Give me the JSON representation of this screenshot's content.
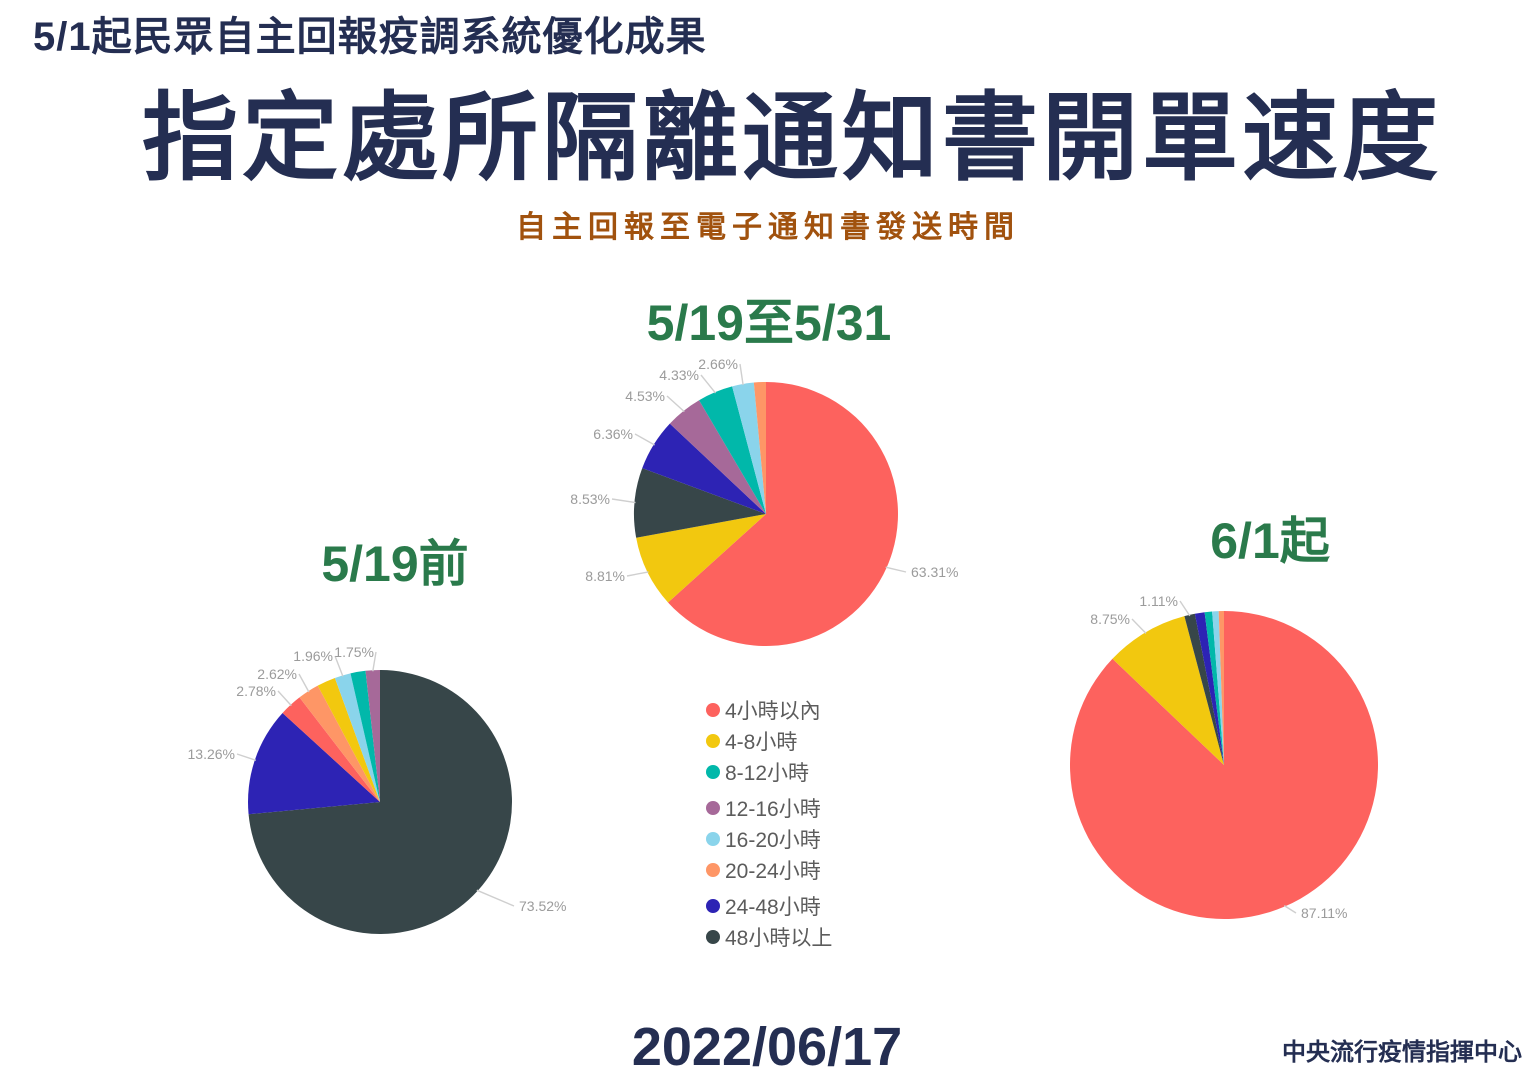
{
  "header": {
    "kicker": "5/1起民眾自主回報疫調系統優化成果",
    "title": "指定處所隔離通知書開單速度",
    "subtitle": "自主回報至電子通知書發送時間"
  },
  "footer": {
    "date": "2022/06/17",
    "source": "中央流行疫情指揮中心"
  },
  "palette": {
    "4小時以內": "#FD625E",
    "4-8小時": "#F2C80F",
    "8-12小時": "#01B8AA",
    "12-16小時": "#A66999",
    "16-20小時": "#8AD4EB",
    "20-24小時": "#FE9666",
    "24-48小時": "#2D23B4",
    "48小時以上": "#374649"
  },
  "legend": [
    "4小時以內",
    "4-8小時",
    "8-12小時",
    "12-16小時",
    "16-20小時",
    "20-24小時",
    "24-48小時",
    "48小時以上"
  ],
  "chart_data": {
    "type": "pie",
    "unit": "percent",
    "legend_position": "center-bottom",
    "note": "slices listed clockwise from 12 o'clock; values without visible labels are estimated from slice angles",
    "pies": [
      {
        "title": "5/19前",
        "slices": [
          {
            "category": "48小時以上",
            "value": 73.52,
            "label": "73.52%"
          },
          {
            "category": "24-48小時",
            "value": 13.26,
            "label": "13.26%"
          },
          {
            "category": "4小時以內",
            "value": 2.78,
            "label": "2.78%"
          },
          {
            "category": "20-24小時",
            "value": 2.62,
            "label": "2.62%"
          },
          {
            "category": "4-8小時",
            "value": 2.27,
            "label": null,
            "estimated": true
          },
          {
            "category": "16-20小時",
            "value": 1.96,
            "label": "1.96%"
          },
          {
            "category": "8-12小時",
            "value": 1.84,
            "label": null,
            "estimated": true
          },
          {
            "category": "12-16小時",
            "value": 1.75,
            "label": "1.75%"
          }
        ]
      },
      {
        "title": "5/19至5/31",
        "slices": [
          {
            "category": "4小時以內",
            "value": 63.31,
            "label": "63.31%"
          },
          {
            "category": "4-8小時",
            "value": 8.81,
            "label": "8.81%"
          },
          {
            "category": "48小時以上",
            "value": 8.53,
            "label": "8.53%"
          },
          {
            "category": "24-48小時",
            "value": 6.36,
            "label": "6.36%"
          },
          {
            "category": "12-16小時",
            "value": 4.53,
            "label": "4.53%"
          },
          {
            "category": "8-12小時",
            "value": 4.33,
            "label": "4.33%"
          },
          {
            "category": "16-20小時",
            "value": 2.66,
            "label": "2.66%"
          },
          {
            "category": "20-24小時",
            "value": 1.47,
            "label": null,
            "estimated": true
          }
        ]
      },
      {
        "title": "6/1起",
        "slices": [
          {
            "category": "4小時以內",
            "value": 87.11,
            "label": "87.11%"
          },
          {
            "category": "4-8小時",
            "value": 8.75,
            "label": "8.75%"
          },
          {
            "category": "48小時以上",
            "value": 1.11,
            "label": "1.11%"
          },
          {
            "category": "24-48小時",
            "value": 1.02,
            "label": null,
            "estimated": true
          },
          {
            "category": "8-12小時",
            "value": 0.78,
            "label": null,
            "estimated": true
          },
          {
            "category": "16-20小時",
            "value": 0.68,
            "label": null,
            "estimated": true
          },
          {
            "category": "20-24小時",
            "value": 0.55,
            "label": null,
            "estimated": true
          }
        ]
      }
    ]
  }
}
